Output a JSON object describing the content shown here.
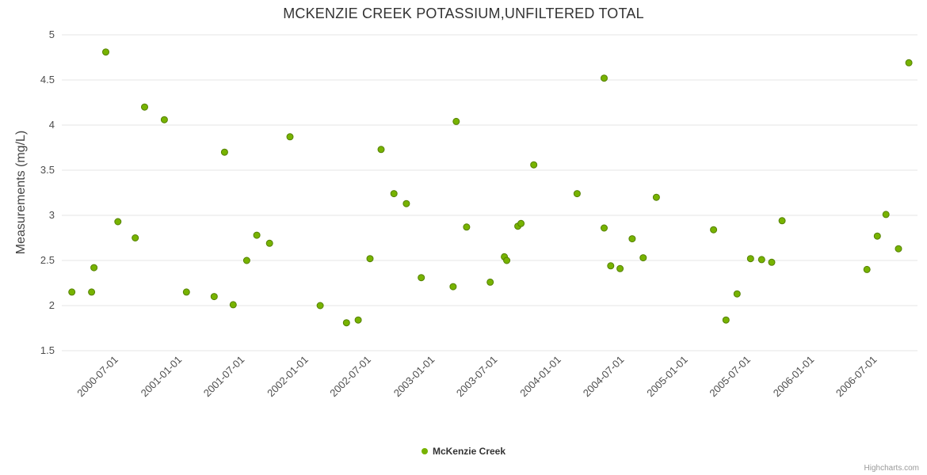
{
  "title": "MCKENZIE CREEK POTASSIUM,UNFILTERED TOTAL",
  "legend": {
    "label": "McKenzie Creek"
  },
  "credits": {
    "label": "Highcharts.com"
  },
  "colors": {
    "marker_fill": "#77b300",
    "marker_stroke": "#548000",
    "grid": "#e6e6e6",
    "tick_label": "#4d4d4d",
    "title": "#333333"
  },
  "chart_data": {
    "type": "scatter",
    "title": "MCKENZIE CREEK POTASSIUM,UNFILTERED TOTAL",
    "xlabel": "",
    "ylabel": "Measurements (mg/L)",
    "ylim": [
      1.5,
      5
    ],
    "ytick_step": 0.5,
    "grid": "horizontal",
    "legend_position": "bottom-center",
    "x_range": [
      "2000-01-28",
      "2006-11-03"
    ],
    "x_ticks": [
      "2000-07-01",
      "2001-01-01",
      "2001-07-01",
      "2002-01-01",
      "2002-07-01",
      "2003-01-01",
      "2003-07-01",
      "2004-01-01",
      "2004-07-01",
      "2005-01-01",
      "2005-07-01",
      "2006-01-01",
      "2006-07-01"
    ],
    "series": [
      {
        "name": "McKenzie Creek",
        "points": [
          [
            "2000-02-26",
            2.15
          ],
          [
            "2000-04-23",
            2.15
          ],
          [
            "2000-04-30",
            2.42
          ],
          [
            "2000-06-03",
            4.81
          ],
          [
            "2000-07-08",
            2.93
          ],
          [
            "2000-08-27",
            2.75
          ],
          [
            "2000-09-23",
            4.2
          ],
          [
            "2000-11-19",
            4.06
          ],
          [
            "2001-01-22",
            2.15
          ],
          [
            "2001-04-12",
            2.1
          ],
          [
            "2001-05-12",
            3.7
          ],
          [
            "2001-06-06",
            2.01
          ],
          [
            "2001-07-15",
            2.5
          ],
          [
            "2001-08-13",
            2.78
          ],
          [
            "2001-09-19",
            2.69
          ],
          [
            "2001-11-17",
            3.87
          ],
          [
            "2002-02-12",
            2.0
          ],
          [
            "2002-04-29",
            1.81
          ],
          [
            "2002-06-02",
            1.84
          ],
          [
            "2002-07-06",
            2.52
          ],
          [
            "2002-08-07",
            3.73
          ],
          [
            "2002-09-13",
            3.24
          ],
          [
            "2002-10-19",
            3.13
          ],
          [
            "2002-12-01",
            2.31
          ],
          [
            "2003-03-03",
            2.21
          ],
          [
            "2003-03-12",
            4.04
          ],
          [
            "2003-04-11",
            2.87
          ],
          [
            "2003-06-18",
            2.26
          ],
          [
            "2003-07-29",
            2.54
          ],
          [
            "2003-08-05",
            2.5
          ],
          [
            "2003-09-06",
            2.88
          ],
          [
            "2003-09-15",
            2.91
          ],
          [
            "2003-10-22",
            3.56
          ],
          [
            "2004-02-24",
            3.24
          ],
          [
            "2004-05-12",
            4.52
          ],
          [
            "2004-05-12",
            2.86
          ],
          [
            "2004-05-31",
            2.44
          ],
          [
            "2004-06-27",
            2.41
          ],
          [
            "2004-08-01",
            2.74
          ],
          [
            "2004-09-02",
            2.53
          ],
          [
            "2004-10-10",
            3.2
          ],
          [
            "2005-03-24",
            2.84
          ],
          [
            "2005-04-29",
            1.84
          ],
          [
            "2005-05-31",
            2.13
          ],
          [
            "2005-07-09",
            2.52
          ],
          [
            "2005-08-10",
            2.51
          ],
          [
            "2005-09-08",
            2.48
          ],
          [
            "2005-10-08",
            2.94
          ],
          [
            "2006-06-10",
            2.4
          ],
          [
            "2006-07-10",
            2.77
          ],
          [
            "2006-08-04",
            3.01
          ],
          [
            "2006-09-09",
            2.63
          ],
          [
            "2006-10-09",
            4.69
          ]
        ]
      }
    ]
  }
}
